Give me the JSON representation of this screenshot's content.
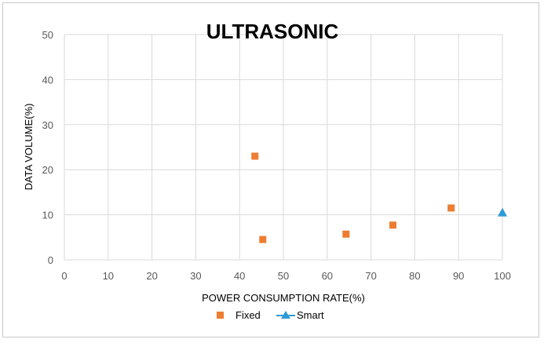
{
  "chart_data": {
    "type": "scatter",
    "title": "ULTRASONIC",
    "xlabel": "POWER CONSUMPTION RATE(%)",
    "ylabel": "DATA VOLUME(%)",
    "xlim": [
      0,
      100
    ],
    "ylim": [
      0,
      50
    ],
    "xticks": [
      "0",
      "10",
      "20",
      "30",
      "40",
      "50",
      "60",
      "70",
      "80",
      "90",
      "100"
    ],
    "yticks": [
      "0",
      "10",
      "20",
      "30",
      "40",
      "50"
    ],
    "grid": true,
    "legend_position": "bottom",
    "series": [
      {
        "name": "Fixed",
        "marker": "square",
        "color": "#ED7D31",
        "points": [
          {
            "x": 43.5,
            "y": 23.0
          },
          {
            "x": 45.3,
            "y": 4.5
          },
          {
            "x": 64.3,
            "y": 5.7
          },
          {
            "x": 75.0,
            "y": 7.7
          },
          {
            "x": 88.3,
            "y": 11.5
          }
        ]
      },
      {
        "name": "Smart",
        "marker": "triangle",
        "color": "#2E9BD6",
        "points": [
          {
            "x": 100,
            "y": 10.5
          }
        ]
      }
    ]
  }
}
